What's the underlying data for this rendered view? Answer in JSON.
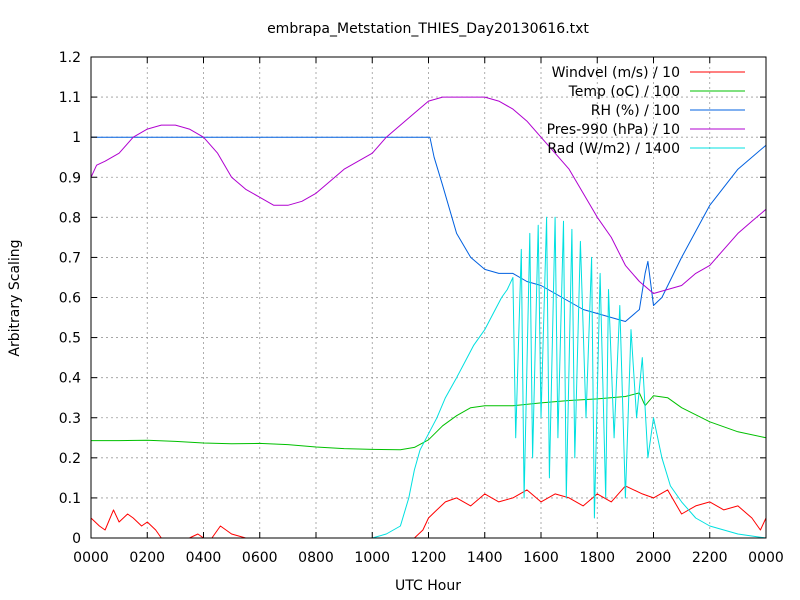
{
  "chart_data": {
    "type": "line",
    "title": "embrapa_Metstation_THIES_Day20130616.txt",
    "xlabel": "UTC Hour",
    "ylabel": "Arbitrary Scaling",
    "xlim": [
      0,
      24
    ],
    "ylim": [
      0,
      1.2
    ],
    "grid": true,
    "legend_position": "top-right",
    "x_ticks": [
      "0000",
      "0200",
      "0400",
      "0600",
      "0800",
      "1000",
      "1200",
      "1400",
      "1600",
      "1800",
      "2000",
      "2200",
      "0000"
    ],
    "y_ticks": [
      "0",
      "0.1",
      "0.2",
      "0.3",
      "0.4",
      "0.5",
      "0.6",
      "0.7",
      "0.8",
      "0.9",
      "1",
      "1.1",
      "1.2"
    ],
    "x_tick_values": [
      0,
      2,
      4,
      6,
      8,
      10,
      12,
      14,
      16,
      18,
      20,
      22,
      24
    ],
    "y_tick_values": [
      0,
      0.1,
      0.2,
      0.3,
      0.4,
      0.5,
      0.6,
      0.7,
      0.8,
      0.9,
      1.0,
      1.1,
      1.2
    ],
    "series": [
      {
        "name": "Windvel (m/s) / 10",
        "color": "#ff0000",
        "x": [
          0,
          0.3,
          0.5,
          0.8,
          1.0,
          1.3,
          1.5,
          1.8,
          2.0,
          2.3,
          2.5,
          3.0,
          3.5,
          3.8,
          4.0,
          4.3,
          4.6,
          5.0,
          5.5,
          6.0,
          8.0,
          10.0,
          11.0,
          11.5,
          11.8,
          12.0,
          12.3,
          12.6,
          13.0,
          13.5,
          14.0,
          14.5,
          15.0,
          15.5,
          16.0,
          16.5,
          17.0,
          17.5,
          18.0,
          18.5,
          19.0,
          19.3,
          19.6,
          20.0,
          20.5,
          21.0,
          21.5,
          22.0,
          22.5,
          23.0,
          23.5,
          23.8,
          24.0
        ],
        "y": [
          0.05,
          0.03,
          0.02,
          0.07,
          0.04,
          0.06,
          0.05,
          0.03,
          0.04,
          0.02,
          0.0,
          0.0,
          0.0,
          0.01,
          0.0,
          0.0,
          0.03,
          0.01,
          0.0,
          0.0,
          0.0,
          0.0,
          0.0,
          0.0,
          0.02,
          0.05,
          0.07,
          0.09,
          0.1,
          0.08,
          0.11,
          0.09,
          0.1,
          0.12,
          0.09,
          0.11,
          0.1,
          0.08,
          0.11,
          0.09,
          0.13,
          0.12,
          0.11,
          0.1,
          0.12,
          0.06,
          0.08,
          0.09,
          0.07,
          0.08,
          0.05,
          0.02,
          0.05
        ]
      },
      {
        "name": "Temp (oC) / 100",
        "color": "#00c000",
        "x": [
          0,
          1,
          2,
          3,
          4,
          5,
          6,
          7,
          8,
          9,
          10,
          11,
          11.5,
          12,
          12.5,
          13,
          13.5,
          14,
          15,
          16,
          17,
          18,
          19,
          19.5,
          19.7,
          20,
          20.5,
          21,
          22,
          23,
          24
        ],
        "y": [
          0.243,
          0.243,
          0.244,
          0.241,
          0.237,
          0.235,
          0.236,
          0.233,
          0.227,
          0.223,
          0.221,
          0.22,
          0.226,
          0.245,
          0.28,
          0.305,
          0.325,
          0.33,
          0.33,
          0.337,
          0.343,
          0.347,
          0.353,
          0.362,
          0.33,
          0.355,
          0.35,
          0.325,
          0.29,
          0.265,
          0.25
        ]
      },
      {
        "name": "RH (%) / 100",
        "color": "#0060e0",
        "x": [
          0,
          5,
          10,
          12.0,
          12.05,
          12.2,
          12.5,
          13,
          13.5,
          14,
          14.5,
          15,
          15.5,
          16,
          16.5,
          17,
          17.5,
          18,
          18.5,
          19,
          19.5,
          19.7,
          19.8,
          20,
          20.3,
          21,
          22,
          23,
          24
        ],
        "y": [
          1.0,
          1.0,
          1.0,
          1.0,
          1.0,
          0.95,
          0.88,
          0.76,
          0.7,
          0.67,
          0.66,
          0.66,
          0.64,
          0.63,
          0.61,
          0.59,
          0.57,
          0.56,
          0.55,
          0.54,
          0.57,
          0.66,
          0.69,
          0.58,
          0.6,
          0.7,
          0.83,
          0.92,
          0.98
        ]
      },
      {
        "name": "Pres-990 (hPa) / 10",
        "color": "#b000d0",
        "x": [
          0,
          0.2,
          0.5,
          1,
          1.5,
          2,
          2.5,
          3,
          3.5,
          4,
          4.5,
          5,
          5.5,
          6,
          6.5,
          7,
          7.5,
          8,
          8.5,
          9,
          9.5,
          10,
          10.5,
          11,
          11.5,
          12,
          12.5,
          13,
          13.5,
          14,
          14.5,
          15,
          15.5,
          16,
          16.5,
          17,
          17.5,
          18,
          18.5,
          19,
          19.5,
          20,
          20.5,
          21,
          21.5,
          22,
          22.5,
          23,
          23.5,
          24
        ],
        "y": [
          0.9,
          0.93,
          0.94,
          0.96,
          1.0,
          1.02,
          1.03,
          1.03,
          1.02,
          1.0,
          0.96,
          0.9,
          0.87,
          0.85,
          0.83,
          0.83,
          0.84,
          0.86,
          0.89,
          0.92,
          0.94,
          0.96,
          1.0,
          1.03,
          1.06,
          1.09,
          1.1,
          1.1,
          1.1,
          1.1,
          1.09,
          1.07,
          1.04,
          1.0,
          0.96,
          0.92,
          0.86,
          0.8,
          0.75,
          0.68,
          0.64,
          0.61,
          0.62,
          0.63,
          0.66,
          0.68,
          0.72,
          0.76,
          0.79,
          0.82
        ]
      },
      {
        "name": "Rad (W/m2) / 1400",
        "color": "#00e0e0",
        "x": [
          0,
          10,
          10.5,
          11,
          11.3,
          11.5,
          11.7,
          12,
          12.3,
          12.6,
          13,
          13.3,
          13.6,
          14,
          14.3,
          14.6,
          14.8,
          15.0,
          15.1,
          15.3,
          15.4,
          15.6,
          15.7,
          15.9,
          16.0,
          16.2,
          16.3,
          16.5,
          16.6,
          16.8,
          16.9,
          17.1,
          17.2,
          17.4,
          17.6,
          17.8,
          17.9,
          18.1,
          18.3,
          18.4,
          18.6,
          18.8,
          19.0,
          19.2,
          19.4,
          19.6,
          19.8,
          20.0,
          20.3,
          20.6,
          21.0,
          21.5,
          22.0,
          23.0,
          24.0
        ],
        "y": [
          0.0,
          0.0,
          0.01,
          0.03,
          0.1,
          0.17,
          0.22,
          0.26,
          0.3,
          0.35,
          0.4,
          0.44,
          0.48,
          0.52,
          0.56,
          0.6,
          0.62,
          0.65,
          0.25,
          0.72,
          0.1,
          0.76,
          0.2,
          0.78,
          0.3,
          0.8,
          0.15,
          0.8,
          0.25,
          0.79,
          0.1,
          0.77,
          0.2,
          0.74,
          0.3,
          0.7,
          0.05,
          0.66,
          0.1,
          0.62,
          0.25,
          0.58,
          0.1,
          0.52,
          0.3,
          0.45,
          0.2,
          0.3,
          0.2,
          0.13,
          0.09,
          0.05,
          0.03,
          0.01,
          0.0
        ]
      }
    ]
  }
}
